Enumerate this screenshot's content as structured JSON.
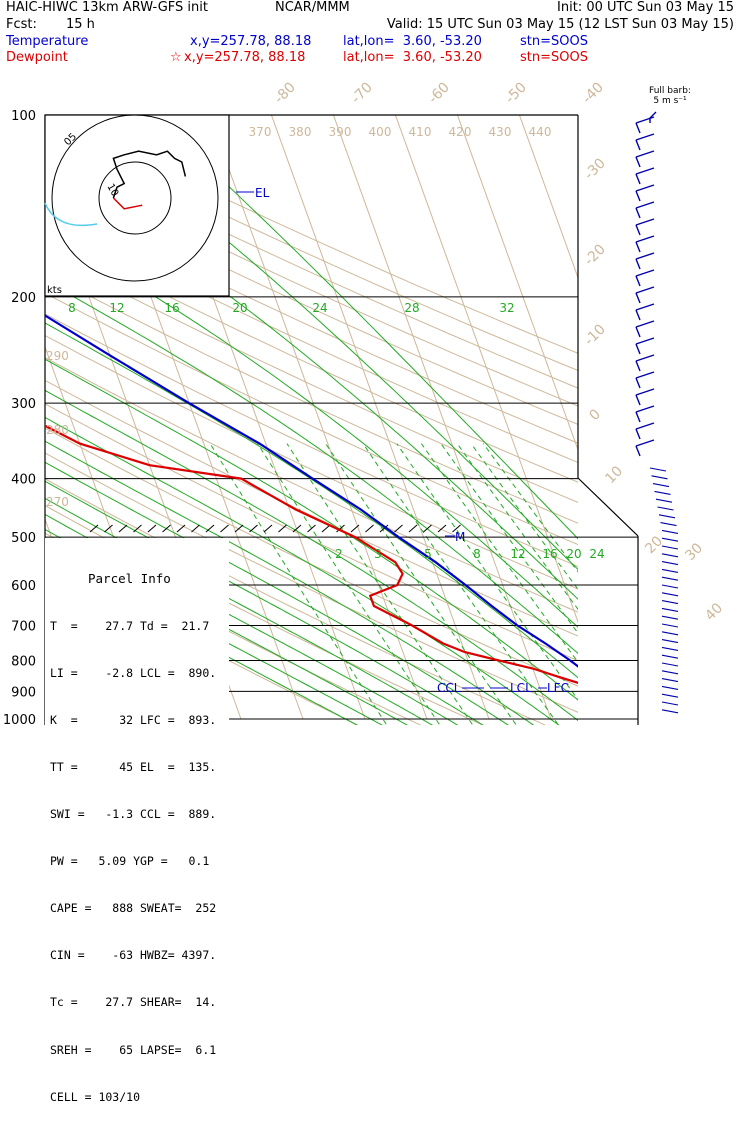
{
  "header": {
    "model": "HAIC-HIWC 13km ARW-GFS init",
    "center": "NCAR/MMM",
    "init": "Init: 00 UTC Sun 03 May 15",
    "fcst_label": "Fcst:",
    "fcst_value": "15 h",
    "valid": "Valid: 15 UTC Sun 03 May 15 (12 LST Sun 03 May 15)"
  },
  "legend": {
    "temperature": {
      "name": "Temperature",
      "xy": "x,y=257.78, 88.18",
      "latlon": "lat,lon=  3.60, -53.20",
      "stn": "stn=SOOS",
      "color": "#0000cc"
    },
    "dewpoint": {
      "name": "Dewpoint",
      "star": "☆",
      "xy": "x,y=257.78, 88.18",
      "latlon": "lat,lon=  3.60, -53.20",
      "stn": "stn=SOOS",
      "color": "#dd0000"
    }
  },
  "hodograph": {
    "ring_labels": [
      "10",
      "05"
    ],
    "units": "kts"
  },
  "barb_header": {
    "line1": "Full barb:",
    "line2": "5 m s⁻¹"
  },
  "parcel_info": {
    "title": "Parcel Info",
    "rows": [
      [
        "T  =    27.7 Td =  21.7"
      ],
      [
        "LI =    -2.8 LCL =  890."
      ],
      [
        "K  =      32 LFC =  893."
      ],
      [
        "TT =      45 EL  =  135."
      ],
      [
        "SWI =   -1.3 CCL =  889."
      ],
      [
        "PW =   5.09 YGP =   0.1"
      ],
      [
        "CAPE =   888 SWEAT=  252"
      ],
      [
        "CIN =    -63 HWBZ= 4397."
      ],
      [
        "Tc =    27.7 SHEAR=  14."
      ],
      [
        "SREH =    65 LAPSE=  6.1"
      ],
      [
        "CELL = 103/10"
      ]
    ]
  },
  "level_labels": {
    "el": "EL",
    "m": "M",
    "ccl": "CCL",
    "lcl": "LCL",
    "lfc": "LFC"
  },
  "chart_data": {
    "type": "line",
    "pressure_levels": [
      "100",
      "200",
      "300",
      "400",
      "500",
      "600",
      "700",
      "800",
      "900",
      "1000"
    ],
    "isotherm_labels": [
      "-80",
      "-70",
      "-60",
      "-50",
      "-40",
      "-30",
      "-20",
      "-10",
      "0",
      "10",
      "20",
      "30",
      "40"
    ],
    "theta_labels": [
      "370",
      "380",
      "390",
      "400",
      "410",
      "420",
      "430",
      "440"
    ],
    "theta_left_labels": [
      "290",
      "280",
      "270"
    ],
    "mixing_ratio_labels": [
      "8",
      "12",
      "16",
      "20",
      "24",
      "28",
      "32"
    ],
    "mixing_ratio_low_labels": [
      "2",
      "3",
      "5",
      "8",
      "12",
      "16",
      "20",
      "24"
    ],
    "series": [
      {
        "name": "Temperature",
        "color": "#0000cc",
        "p": [
          1000,
          950,
          925,
          900,
          875,
          850,
          800,
          750,
          700,
          650,
          600,
          550,
          500,
          450,
          400,
          350,
          300,
          250,
          200,
          170,
          150,
          125,
          110,
          100
        ],
        "T": [
          27.7,
          25.5,
          24.0,
          22.5,
          20.5,
          19.0,
          16.5,
          13.5,
          10.0,
          7.0,
          4.0,
          0.5,
          -4.0,
          -8.5,
          -14.5,
          -21.0,
          -30.0,
          -40.0,
          -52.0,
          -62.0,
          -70.0,
          -76.0,
          -73.0,
          -70.0
        ]
      },
      {
        "name": "Dewpoint",
        "color": "#dd0000",
        "p": [
          1000,
          950,
          925,
          900,
          875,
          850,
          825,
          800,
          775,
          750,
          700,
          650,
          625,
          600,
          575,
          550,
          500,
          450,
          400,
          380,
          350,
          320,
          300,
          285,
          270,
          250,
          230,
          200,
          180,
          160,
          140,
          120,
          110,
          100
        ],
        "Td": [
          21.7,
          22.0,
          21.8,
          20.0,
          17.0,
          13.5,
          10.0,
          5.0,
          0.0,
          -3.0,
          -7.0,
          -12.0,
          -12.0,
          -7.0,
          -5.5,
          -6.0,
          -11.0,
          -19.0,
          -26.0,
          -40.0,
          -50.0,
          -56.0,
          -65.0,
          -57.0,
          -60.0,
          -60.0,
          -66.0,
          -76.0,
          -82.0,
          -83.0,
          -85.0,
          -94.0,
          -95.0,
          -90.0
        ]
      }
    ],
    "hodograph": {
      "u": [
        2,
        -3,
        -6,
        -5,
        -3,
        -4,
        -5,
        -6,
        -3,
        1,
        6,
        9,
        11,
        13,
        14
      ],
      "v": [
        -2,
        -3,
        0,
        3,
        4,
        6,
        8,
        11,
        12,
        13,
        12,
        13,
        11,
        10,
        6
      ]
    }
  }
}
